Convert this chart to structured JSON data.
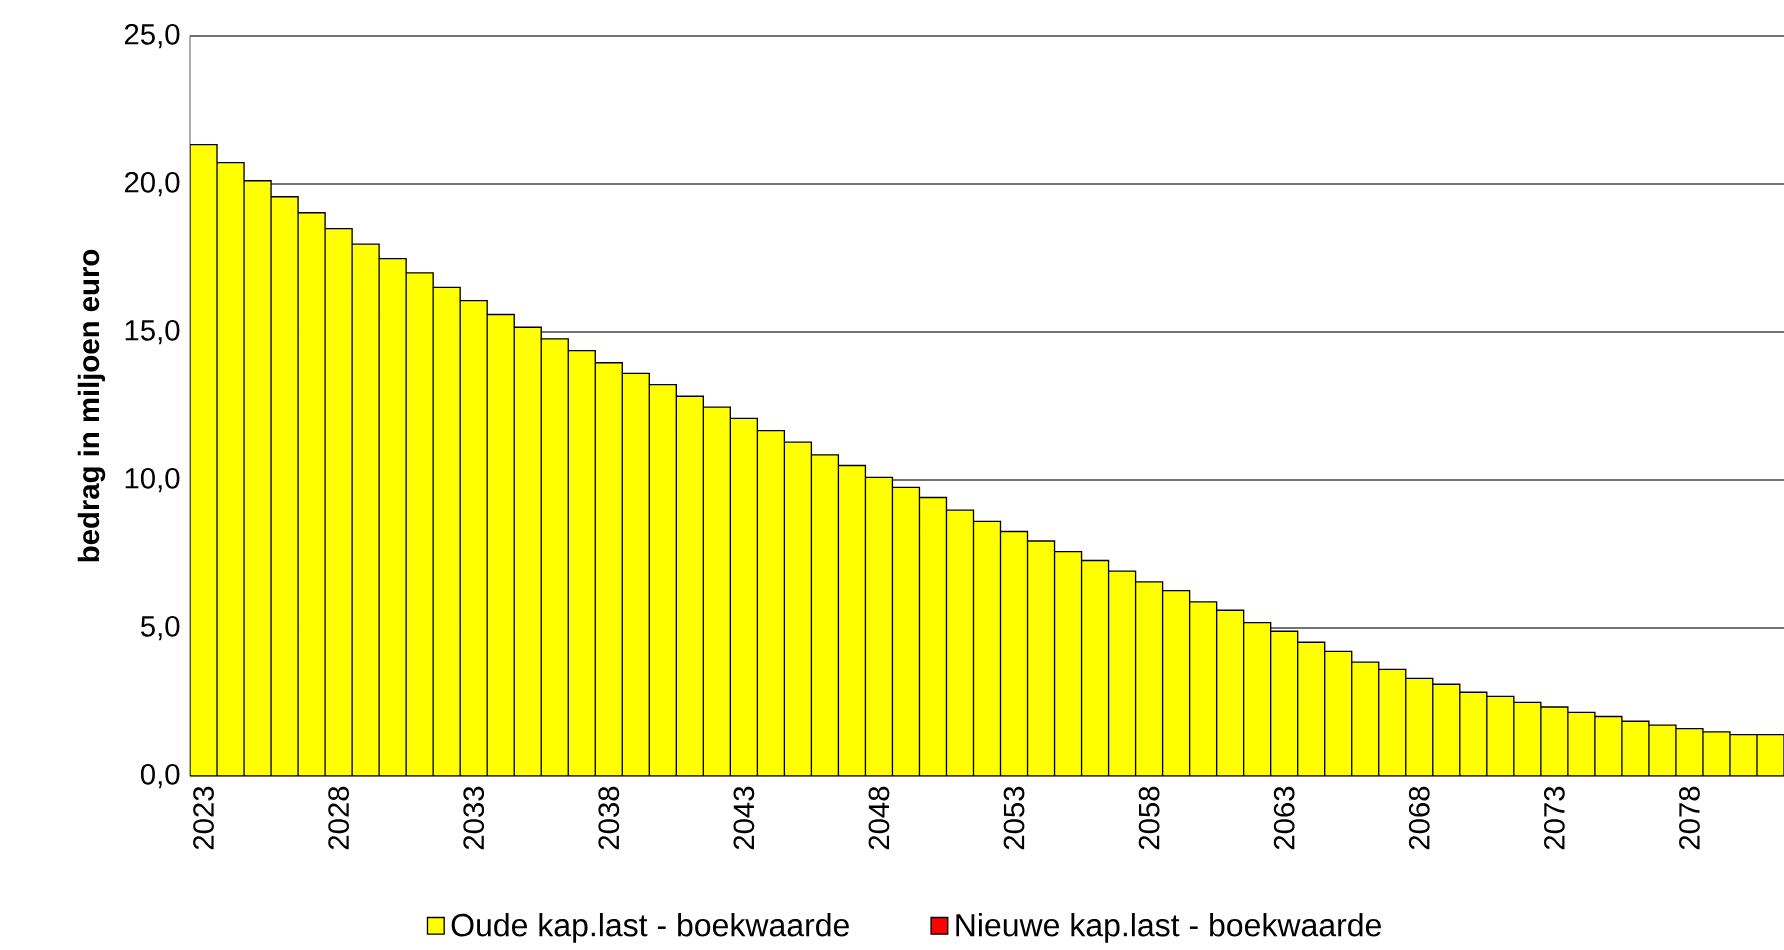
{
  "chart_data": {
    "type": "bar",
    "ylabel": "bedrag in miljoen euro",
    "stacked": true,
    "categories": [
      "2023",
      null,
      null,
      null,
      null,
      "2028",
      null,
      null,
      null,
      null,
      "2033",
      null,
      null,
      null,
      null,
      "2038",
      null,
      null,
      null,
      null,
      "2043",
      null,
      null,
      null,
      null,
      "2048",
      null,
      null,
      null,
      null,
      "2053",
      null,
      null,
      null,
      null,
      "2058",
      null,
      null,
      null,
      null,
      "2063",
      null,
      null,
      null,
      null,
      "2068",
      null,
      null,
      null,
      null,
      "2073",
      null,
      null,
      null,
      null,
      "2078",
      null,
      null,
      null
    ],
    "series": [
      {
        "name": "Oude kap.last - boekwaarde",
        "color": "#ffff00",
        "values": [
          21.33,
          20.72,
          20.11,
          19.57,
          19.03,
          18.49,
          17.97,
          17.48,
          17.0,
          16.51,
          16.06,
          15.59,
          15.16,
          14.77,
          14.37,
          13.96,
          13.6,
          13.22,
          12.83,
          12.46,
          12.08,
          11.67,
          11.28,
          10.85,
          10.49,
          10.09,
          9.75,
          9.41,
          8.98,
          8.6,
          8.26,
          7.94,
          7.58,
          7.28,
          6.92,
          6.56,
          6.26,
          5.88,
          5.6,
          5.18,
          4.89,
          4.52,
          4.21,
          3.85,
          3.6,
          3.3,
          3.1,
          2.83,
          2.69,
          2.49,
          2.33,
          2.15,
          2.01,
          1.85,
          1.72,
          1.6,
          1.49,
          1.4,
          1.4
        ]
      },
      {
        "name": "Nieuwe kap.last - boekwaarde",
        "color": "#ff0000",
        "values": [
          null,
          null,
          null,
          null,
          null,
          null,
          null,
          null,
          null,
          null,
          null,
          null,
          null,
          null,
          null,
          null,
          null,
          null,
          null,
          null,
          null,
          null,
          null,
          null,
          null,
          null,
          null,
          null,
          null,
          null,
          null,
          null,
          null,
          null,
          null,
          null,
          null,
          null,
          null,
          null,
          null,
          null,
          null,
          null,
          null,
          null,
          null,
          null,
          null,
          null,
          null,
          null,
          null,
          null,
          null,
          null,
          null,
          null,
          null
        ]
      }
    ],
    "ylim": [
      0,
      25
    ],
    "yticks": [
      {
        "value": 0,
        "label": "0,0"
      },
      {
        "value": 5,
        "label": "5,0"
      },
      {
        "value": 10,
        "label": "10,0"
      },
      {
        "value": 15,
        "label": "15,0"
      },
      {
        "value": 20,
        "label": "20,0"
      },
      {
        "value": 25,
        "label": "25,0"
      }
    ],
    "grid": "y",
    "legend": "bottom"
  }
}
